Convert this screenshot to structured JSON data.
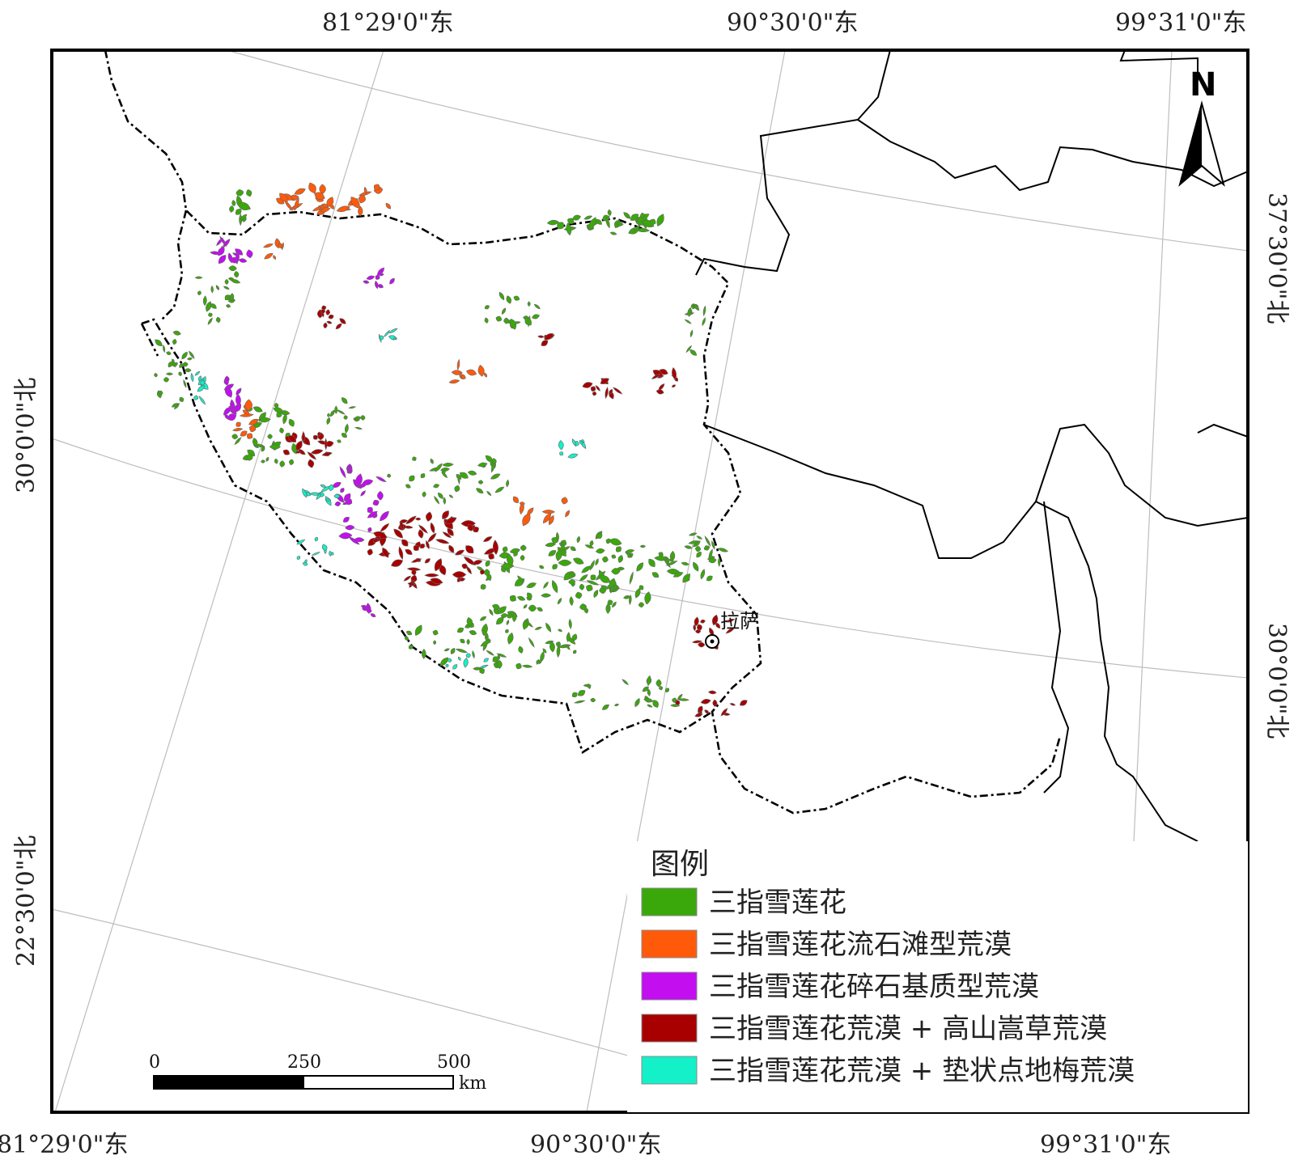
{
  "map": {
    "top_lon_labels": [
      "81°29'0\"东",
      "90°30'0\"东",
      "99°31'0\"东"
    ],
    "bottom_lon_labels": [
      "81°29'0\"东",
      "90°30'0\"东",
      "99°31'0\"东"
    ],
    "left_lat_labels": [
      "30°0'0\"北",
      "22°30'0\"北"
    ],
    "right_lat_labels": [
      "37°30'0\"北",
      "30°0'0\"北"
    ],
    "city": {
      "name": "拉萨"
    },
    "north_arrow": {
      "label": "N",
      "icon": "north-arrow-icon"
    }
  },
  "legend": {
    "title": "图例",
    "items": [
      {
        "label": "三指雪莲花",
        "color": "#3aa80a"
      },
      {
        "label": "三指雪莲花流石滩型荒漠",
        "color": "#ff5a0a"
      },
      {
        "label": "三指雪莲花碎石基质型荒漠",
        "color": "#c30ef0"
      },
      {
        "label": "三指雪莲花荒漠 + 高山嵩草荒漠",
        "color": "#a80000"
      },
      {
        "label": "三指雪莲花荒漠 + 垫状点地梅荒漠",
        "color": "#14f0c8"
      }
    ]
  },
  "scale_bar": {
    "ticks": [
      "0",
      "250",
      "500"
    ],
    "unit": "km"
  }
}
